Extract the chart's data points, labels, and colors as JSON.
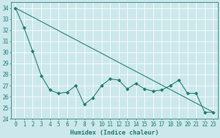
{
  "title": "",
  "xlabel": "Humidex (Indice chaleur)",
  "ylabel": "",
  "background_color": "#cce8ec",
  "grid_color": "#ffffff",
  "line_color": "#1a7a6a",
  "xlim": [
    -0.5,
    23.5
  ],
  "ylim": [
    24,
    34.5
  ],
  "yticks": [
    24,
    25,
    26,
    27,
    28,
    29,
    30,
    31,
    32,
    33,
    34
  ],
  "xticks": [
    0,
    1,
    2,
    3,
    4,
    5,
    6,
    7,
    8,
    9,
    10,
    11,
    12,
    13,
    14,
    15,
    16,
    17,
    18,
    19,
    20,
    21,
    22,
    23
  ],
  "series1_x": [
    0,
    1,
    2,
    3,
    4,
    5,
    6,
    7,
    8,
    9,
    10,
    11,
    12,
    13,
    14,
    15,
    16,
    17,
    18,
    19,
    20,
    21,
    22,
    23
  ],
  "series1_y": [
    34.0,
    32.2,
    30.1,
    27.9,
    26.6,
    26.3,
    26.4,
    27.0,
    25.3,
    25.9,
    27.0,
    27.6,
    27.5,
    26.7,
    27.2,
    26.7,
    26.5,
    26.6,
    27.0,
    27.5,
    26.3,
    26.3,
    24.6,
    24.6
  ],
  "series2_x": [
    0,
    23
  ],
  "series2_y": [
    34.0,
    24.6
  ],
  "marker": "D",
  "marker_size": 2.5,
  "font_color": "#1a7a6a",
  "font_size": 5.5,
  "xlabel_fontsize": 6.5,
  "linewidth": 0.8
}
